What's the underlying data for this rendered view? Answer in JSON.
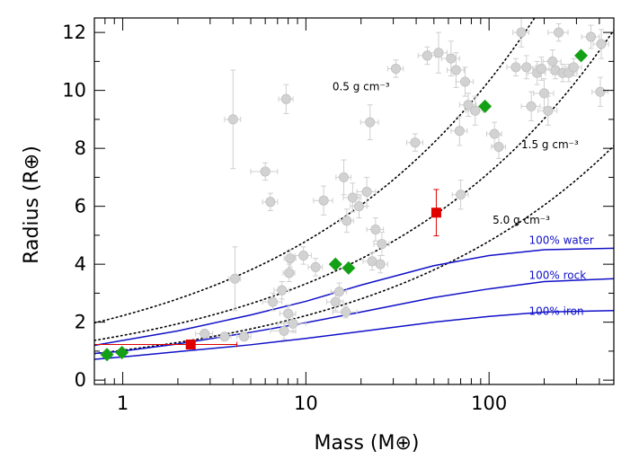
{
  "chart_data": {
    "type": "scatter",
    "xlabel": "Mass (M⊕)",
    "ylabel": "Radius (R⊕)",
    "xscale": "log",
    "xlim": [
      0.7,
      480
    ],
    "ylim": [
      -0.15,
      12.5
    ],
    "x_ticks": [
      {
        "value": 1,
        "label": "1"
      },
      {
        "value": 10,
        "label": "10"
      },
      {
        "value": 100,
        "label": "100"
      }
    ],
    "y_ticks": [
      0,
      2,
      4,
      6,
      8,
      10,
      12
    ],
    "density_curves": [
      {
        "label": "0.5 g cm⁻³",
        "density": 0.5,
        "color": "#000000",
        "style": "dotted",
        "label_at": [
          20,
          10.0
        ]
      },
      {
        "label": "1.5 g cm⁻³",
        "density": 1.5,
        "color": "#000000",
        "style": "dotted",
        "label_at": [
          215,
          8.0
        ]
      },
      {
        "label": "5.0 g cm⁻³",
        "density": 5.0,
        "color": "#000000",
        "style": "dotted",
        "label_at": [
          150,
          5.4
        ]
      }
    ],
    "composition_curves": [
      {
        "label": "100% water",
        "color": "#1010c8",
        "label_at": [
          165,
          4.7
        ],
        "points": [
          [
            0.7,
            1.2
          ],
          [
            1,
            1.37
          ],
          [
            2,
            1.7
          ],
          [
            5,
            2.25
          ],
          [
            10,
            2.72
          ],
          [
            20,
            3.28
          ],
          [
            50,
            3.95
          ],
          [
            100,
            4.3
          ],
          [
            200,
            4.5
          ],
          [
            480,
            4.55
          ]
        ]
      },
      {
        "label": "100% rock",
        "color": "#1010c8",
        "label_at": [
          165,
          3.5
        ],
        "points": [
          [
            0.7,
            0.92
          ],
          [
            1,
            1.0
          ],
          [
            2,
            1.25
          ],
          [
            5,
            1.65
          ],
          [
            10,
            1.98
          ],
          [
            20,
            2.35
          ],
          [
            50,
            2.85
          ],
          [
            100,
            3.15
          ],
          [
            200,
            3.4
          ],
          [
            480,
            3.5
          ]
        ]
      },
      {
        "label": "100% iron",
        "color": "#1010c8",
        "label_at": [
          165,
          2.25
        ],
        "points": [
          [
            0.7,
            0.72
          ],
          [
            1,
            0.8
          ],
          [
            2,
            0.98
          ],
          [
            5,
            1.22
          ],
          [
            10,
            1.44
          ],
          [
            20,
            1.68
          ],
          [
            50,
            2.0
          ],
          [
            100,
            2.2
          ],
          [
            200,
            2.35
          ],
          [
            480,
            2.4
          ]
        ]
      }
    ],
    "series": [
      {
        "marker": "circle",
        "color": "#d2d2d2",
        "points": [
          {
            "x": 4.0,
            "y": 9.0,
            "ex": 0.4,
            "ey": 1.7
          },
          {
            "x": 6.0,
            "y": 7.2,
            "ex": 1.0,
            "ey": 0.3
          },
          {
            "x": 6.4,
            "y": 6.15,
            "ex": 0.6,
            "ey": 0.3
          },
          {
            "x": 7.8,
            "y": 9.7,
            "ex": 0.7,
            "ey": 0.5
          },
          {
            "x": 4.1,
            "y": 3.5,
            "ex": 0.3,
            "ey": 1.1
          },
          {
            "x": 6.6,
            "y": 2.7,
            "ex": 0.8,
            "ey": 0.3
          },
          {
            "x": 7.4,
            "y": 3.1,
            "ex": 0.7,
            "ey": 0.3
          },
          {
            "x": 8.1,
            "y": 3.7,
            "ex": 0.6,
            "ey": 0.3
          },
          {
            "x": 8.2,
            "y": 4.2,
            "ex": 0.6,
            "ey": 0.3
          },
          {
            "x": 8.0,
            "y": 2.3,
            "ex": 0.8,
            "ey": 0.3
          },
          {
            "x": 8.5,
            "y": 1.95,
            "ex": 1.5,
            "ey": 0.3
          },
          {
            "x": 7.6,
            "y": 1.7,
            "ex": 1.2,
            "ey": 0.3
          },
          {
            "x": 2.8,
            "y": 1.6,
            "ex": 0.3,
            "ey": 0.1
          },
          {
            "x": 3.6,
            "y": 1.5,
            "ex": 0.3,
            "ey": 0.1
          },
          {
            "x": 4.6,
            "y": 1.5,
            "ex": 0.4,
            "ey": 0.1
          },
          {
            "x": 9.7,
            "y": 4.3,
            "ex": 1.0,
            "ey": 0.3
          },
          {
            "x": 11.3,
            "y": 3.9,
            "ex": 1.0,
            "ey": 0.3
          },
          {
            "x": 12.5,
            "y": 6.2,
            "ex": 1.5,
            "ey": 0.5
          },
          {
            "x": 14.5,
            "y": 2.7,
            "ex": 1.5,
            "ey": 0.3
          },
          {
            "x": 15.2,
            "y": 3.05,
            "ex": 1.5,
            "ey": 0.3
          },
          {
            "x": 16.1,
            "y": 7.0,
            "ex": 1.5,
            "ey": 0.6
          },
          {
            "x": 16.7,
            "y": 5.5,
            "ex": 1.5,
            "ey": 0.4
          },
          {
            "x": 18.0,
            "y": 6.3,
            "ex": 2.0,
            "ey": 0.5
          },
          {
            "x": 19.5,
            "y": 6.0,
            "ex": 2.0,
            "ey": 0.4
          },
          {
            "x": 21.5,
            "y": 6.5,
            "ex": 2.5,
            "ey": 0.5
          },
          {
            "x": 22.4,
            "y": 8.9,
            "ex": 2.5,
            "ey": 0.6
          },
          {
            "x": 23.0,
            "y": 4.1,
            "ex": 2.5,
            "ey": 0.3
          },
          {
            "x": 24.0,
            "y": 5.2,
            "ex": 2.5,
            "ey": 0.4
          },
          {
            "x": 25.5,
            "y": 4.0,
            "ex": 2.5,
            "ey": 0.3
          },
          {
            "x": 26.0,
            "y": 4.7,
            "ex": 2.5,
            "ey": 0.4
          },
          {
            "x": 16.5,
            "y": 2.35,
            "ex": 2.5,
            "ey": 0.2
          },
          {
            "x": 31.0,
            "y": 10.75,
            "ex": 3.0,
            "ey": 0.3
          },
          {
            "x": 39.5,
            "y": 8.2,
            "ex": 4.0,
            "ey": 0.3
          },
          {
            "x": 46.0,
            "y": 11.2,
            "ex": 5.0,
            "ey": 0.3
          },
          {
            "x": 53.0,
            "y": 11.3,
            "ex": 6.0,
            "ey": 0.7
          },
          {
            "x": 62.0,
            "y": 11.1,
            "ex": 7.0,
            "ey": 0.6
          },
          {
            "x": 66.0,
            "y": 10.7,
            "ex": 7.0,
            "ey": 0.6
          },
          {
            "x": 69.0,
            "y": 8.6,
            "ex": 7.0,
            "ey": 0.5
          },
          {
            "x": 70.0,
            "y": 6.4,
            "ex": 7.0,
            "ey": 0.5
          },
          {
            "x": 74.0,
            "y": 10.3,
            "ex": 8.0,
            "ey": 0.5
          },
          {
            "x": 77.0,
            "y": 9.5,
            "ex": 8.0,
            "ey": 0.4
          },
          {
            "x": 84.0,
            "y": 9.3,
            "ex": 9.0,
            "ey": 0.5
          },
          {
            "x": 107.0,
            "y": 8.5,
            "ex": 10.0,
            "ey": 0.4
          },
          {
            "x": 113.0,
            "y": 8.05,
            "ex": 10.0,
            "ey": 0.4
          },
          {
            "x": 140.0,
            "y": 10.8,
            "ex": 15.0,
            "ey": 0.3
          },
          {
            "x": 150.0,
            "y": 12.0,
            "ex": 15.0,
            "ey": 0.5
          },
          {
            "x": 160.0,
            "y": 10.8,
            "ex": 20.0,
            "ey": 0.4
          },
          {
            "x": 170.0,
            "y": 9.45,
            "ex": 20.0,
            "ey": 0.5
          },
          {
            "x": 183.0,
            "y": 10.6,
            "ex": 20.0,
            "ey": 0.4
          },
          {
            "x": 193.0,
            "y": 10.75,
            "ex": 20.0,
            "ey": 0.4
          },
          {
            "x": 200.0,
            "y": 9.9,
            "ex": 25.0,
            "ey": 0.5
          },
          {
            "x": 210.0,
            "y": 9.3,
            "ex": 25.0,
            "ey": 0.5
          },
          {
            "x": 222.0,
            "y": 11.0,
            "ex": 25.0,
            "ey": 0.4
          },
          {
            "x": 230.0,
            "y": 10.7,
            "ex": 30.0,
            "ey": 0.3
          },
          {
            "x": 240.0,
            "y": 12.0,
            "ex": 30.0,
            "ey": 0.3
          },
          {
            "x": 252.0,
            "y": 10.6,
            "ex": 30.0,
            "ey": 0.3
          },
          {
            "x": 272.0,
            "y": 10.6,
            "ex": 30.0,
            "ey": 0.3
          },
          {
            "x": 290.0,
            "y": 10.8,
            "ex": 30.0,
            "ey": 0.3
          },
          {
            "x": 360.0,
            "y": 11.85,
            "ex": 40.0,
            "ey": 0.4
          },
          {
            "x": 405.0,
            "y": 9.95,
            "ex": 40.0,
            "ey": 0.5
          },
          {
            "x": 410.0,
            "y": 11.6,
            "ex": 40.0,
            "ey": 0.5
          }
        ]
      },
      {
        "marker": "diamond",
        "color": "#14a014",
        "points": [
          {
            "x": 0.82,
            "y": 0.88
          },
          {
            "x": 0.99,
            "y": 0.95
          },
          {
            "x": 14.5,
            "y": 4.0
          },
          {
            "x": 17.1,
            "y": 3.87
          },
          {
            "x": 95.0,
            "y": 9.45
          },
          {
            "x": 318.0,
            "y": 11.2
          }
        ]
      },
      {
        "marker": "square",
        "color": "#e00000",
        "points": [
          {
            "x": 2.35,
            "y": 1.23,
            "exl": 1.65,
            "exh": 1.85,
            "ey": 0.1
          },
          {
            "x": 51.5,
            "y": 5.78,
            "ex": 2.0,
            "ey": 0.8
          }
        ]
      }
    ]
  }
}
